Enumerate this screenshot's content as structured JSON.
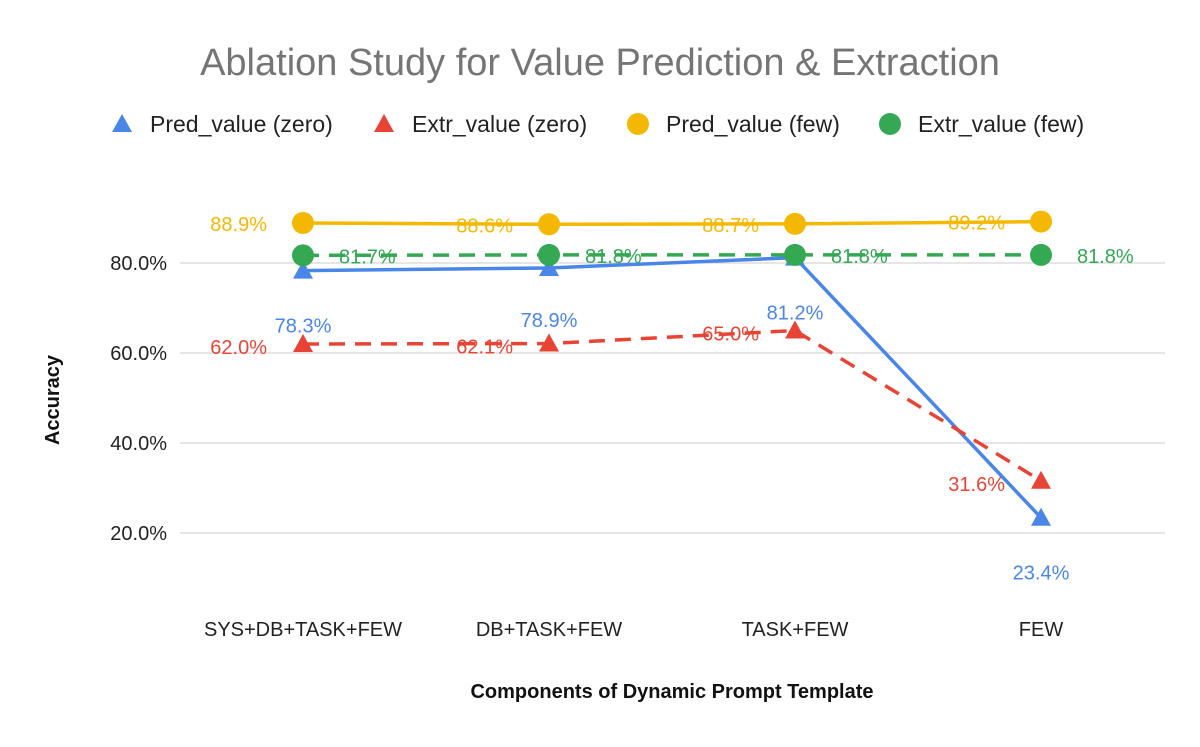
{
  "chart_data": {
    "type": "line",
    "title": "Ablation Study for Value Prediction & Extraction",
    "xlabel": "Components of Dynamic Prompt Template",
    "ylabel": "Accuracy",
    "categories": [
      "SYS+DB+TASK+FEW",
      "DB+TASK+FEW",
      "TASK+FEW",
      "FEW"
    ],
    "ylim": [
      10,
      100
    ],
    "yticks": [
      20,
      40,
      60,
      80
    ],
    "ytick_labels": [
      "20.0%",
      "40.0%",
      "60.0%",
      "80.0%"
    ],
    "grid": true,
    "legend_position": "top",
    "series": [
      {
        "name": "Pred_value (zero)",
        "values": [
          78.3,
          78.9,
          81.2,
          23.4
        ],
        "labels": [
          "78.3%",
          "78.9%",
          "81.2%",
          "23.4%"
        ],
        "color": "#4a86e8",
        "marker": "triangle",
        "line_style": "solid"
      },
      {
        "name": "Extr_value (zero)",
        "values": [
          62.0,
          62.1,
          65.0,
          31.6
        ],
        "labels": [
          "62.0%",
          "62.1%",
          "65.0%",
          "31.6%"
        ],
        "color": "#e84435",
        "marker": "triangle",
        "line_style": "dashed"
      },
      {
        "name": "Pred_value (few)",
        "values": [
          88.9,
          88.6,
          88.7,
          89.2
        ],
        "labels": [
          "88.9%",
          "88.6%",
          "88.7%",
          "89.2%"
        ],
        "color": "#f5b800",
        "marker": "circle",
        "line_style": "solid"
      },
      {
        "name": "Extr_value (few)",
        "values": [
          81.7,
          81.8,
          81.8,
          81.8
        ],
        "labels": [
          "81.7%",
          "81.8%",
          "81.8%",
          "81.8%"
        ],
        "color": "#34a853",
        "marker": "circle",
        "line_style": "dashed"
      }
    ]
  }
}
